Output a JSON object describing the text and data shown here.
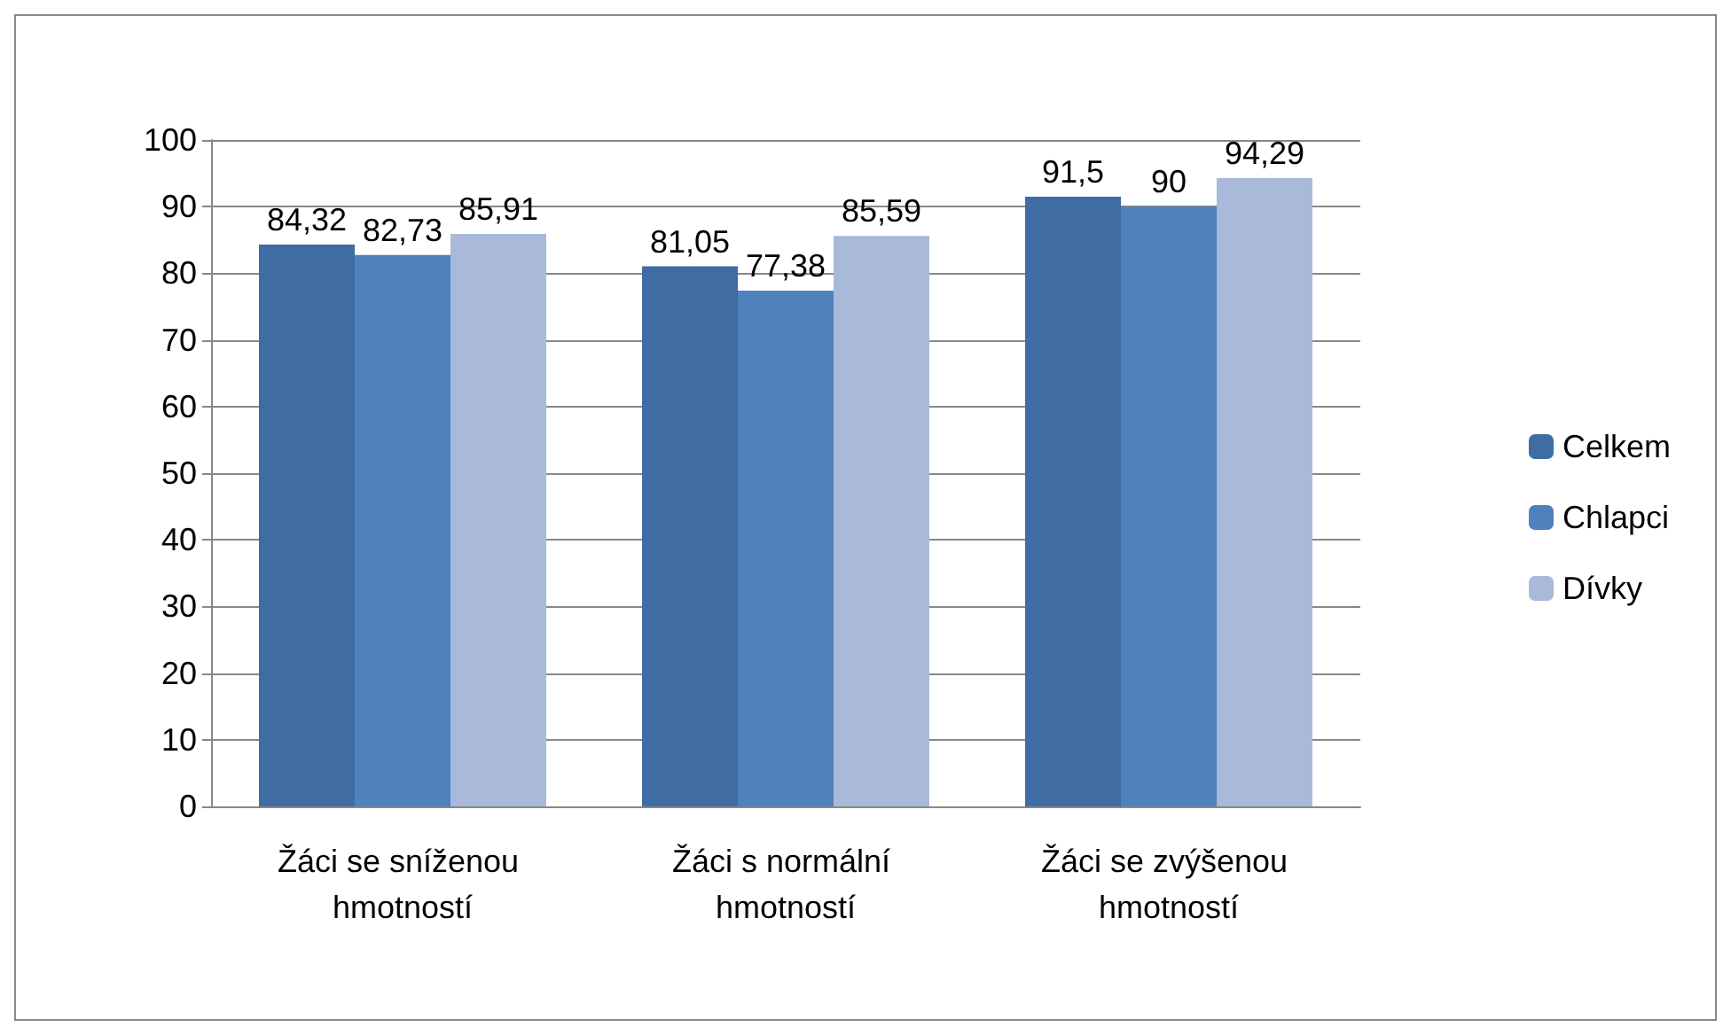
{
  "chart_data": {
    "type": "bar",
    "categories": [
      "Žáci se sníženou hmotností",
      "Žáci s normální hmotností",
      "Žáci se zvýšenou hmotností"
    ],
    "series": [
      {
        "name": "Celkem",
        "color": "#3f6ca3",
        "values": [
          84.32,
          81.05,
          91.5
        ],
        "value_labels": [
          "84,32",
          "81,05",
          "91,5"
        ]
      },
      {
        "name": "Chlapci",
        "color": "#4f81bd",
        "values": [
          82.73,
          77.38,
          90
        ],
        "value_labels": [
          "82,73",
          "77,38",
          "90"
        ]
      },
      {
        "name": "Dívky",
        "color": "#a9b9da",
        "values": [
          85.91,
          85.59,
          94.29
        ],
        "value_labels": [
          "85,91",
          "85,59",
          "94,29"
        ]
      }
    ],
    "ylim": [
      0,
      100
    ],
    "yticks": [
      0,
      10,
      20,
      30,
      40,
      50,
      60,
      70,
      80,
      90,
      100
    ],
    "grid": "y",
    "legend": "right"
  }
}
